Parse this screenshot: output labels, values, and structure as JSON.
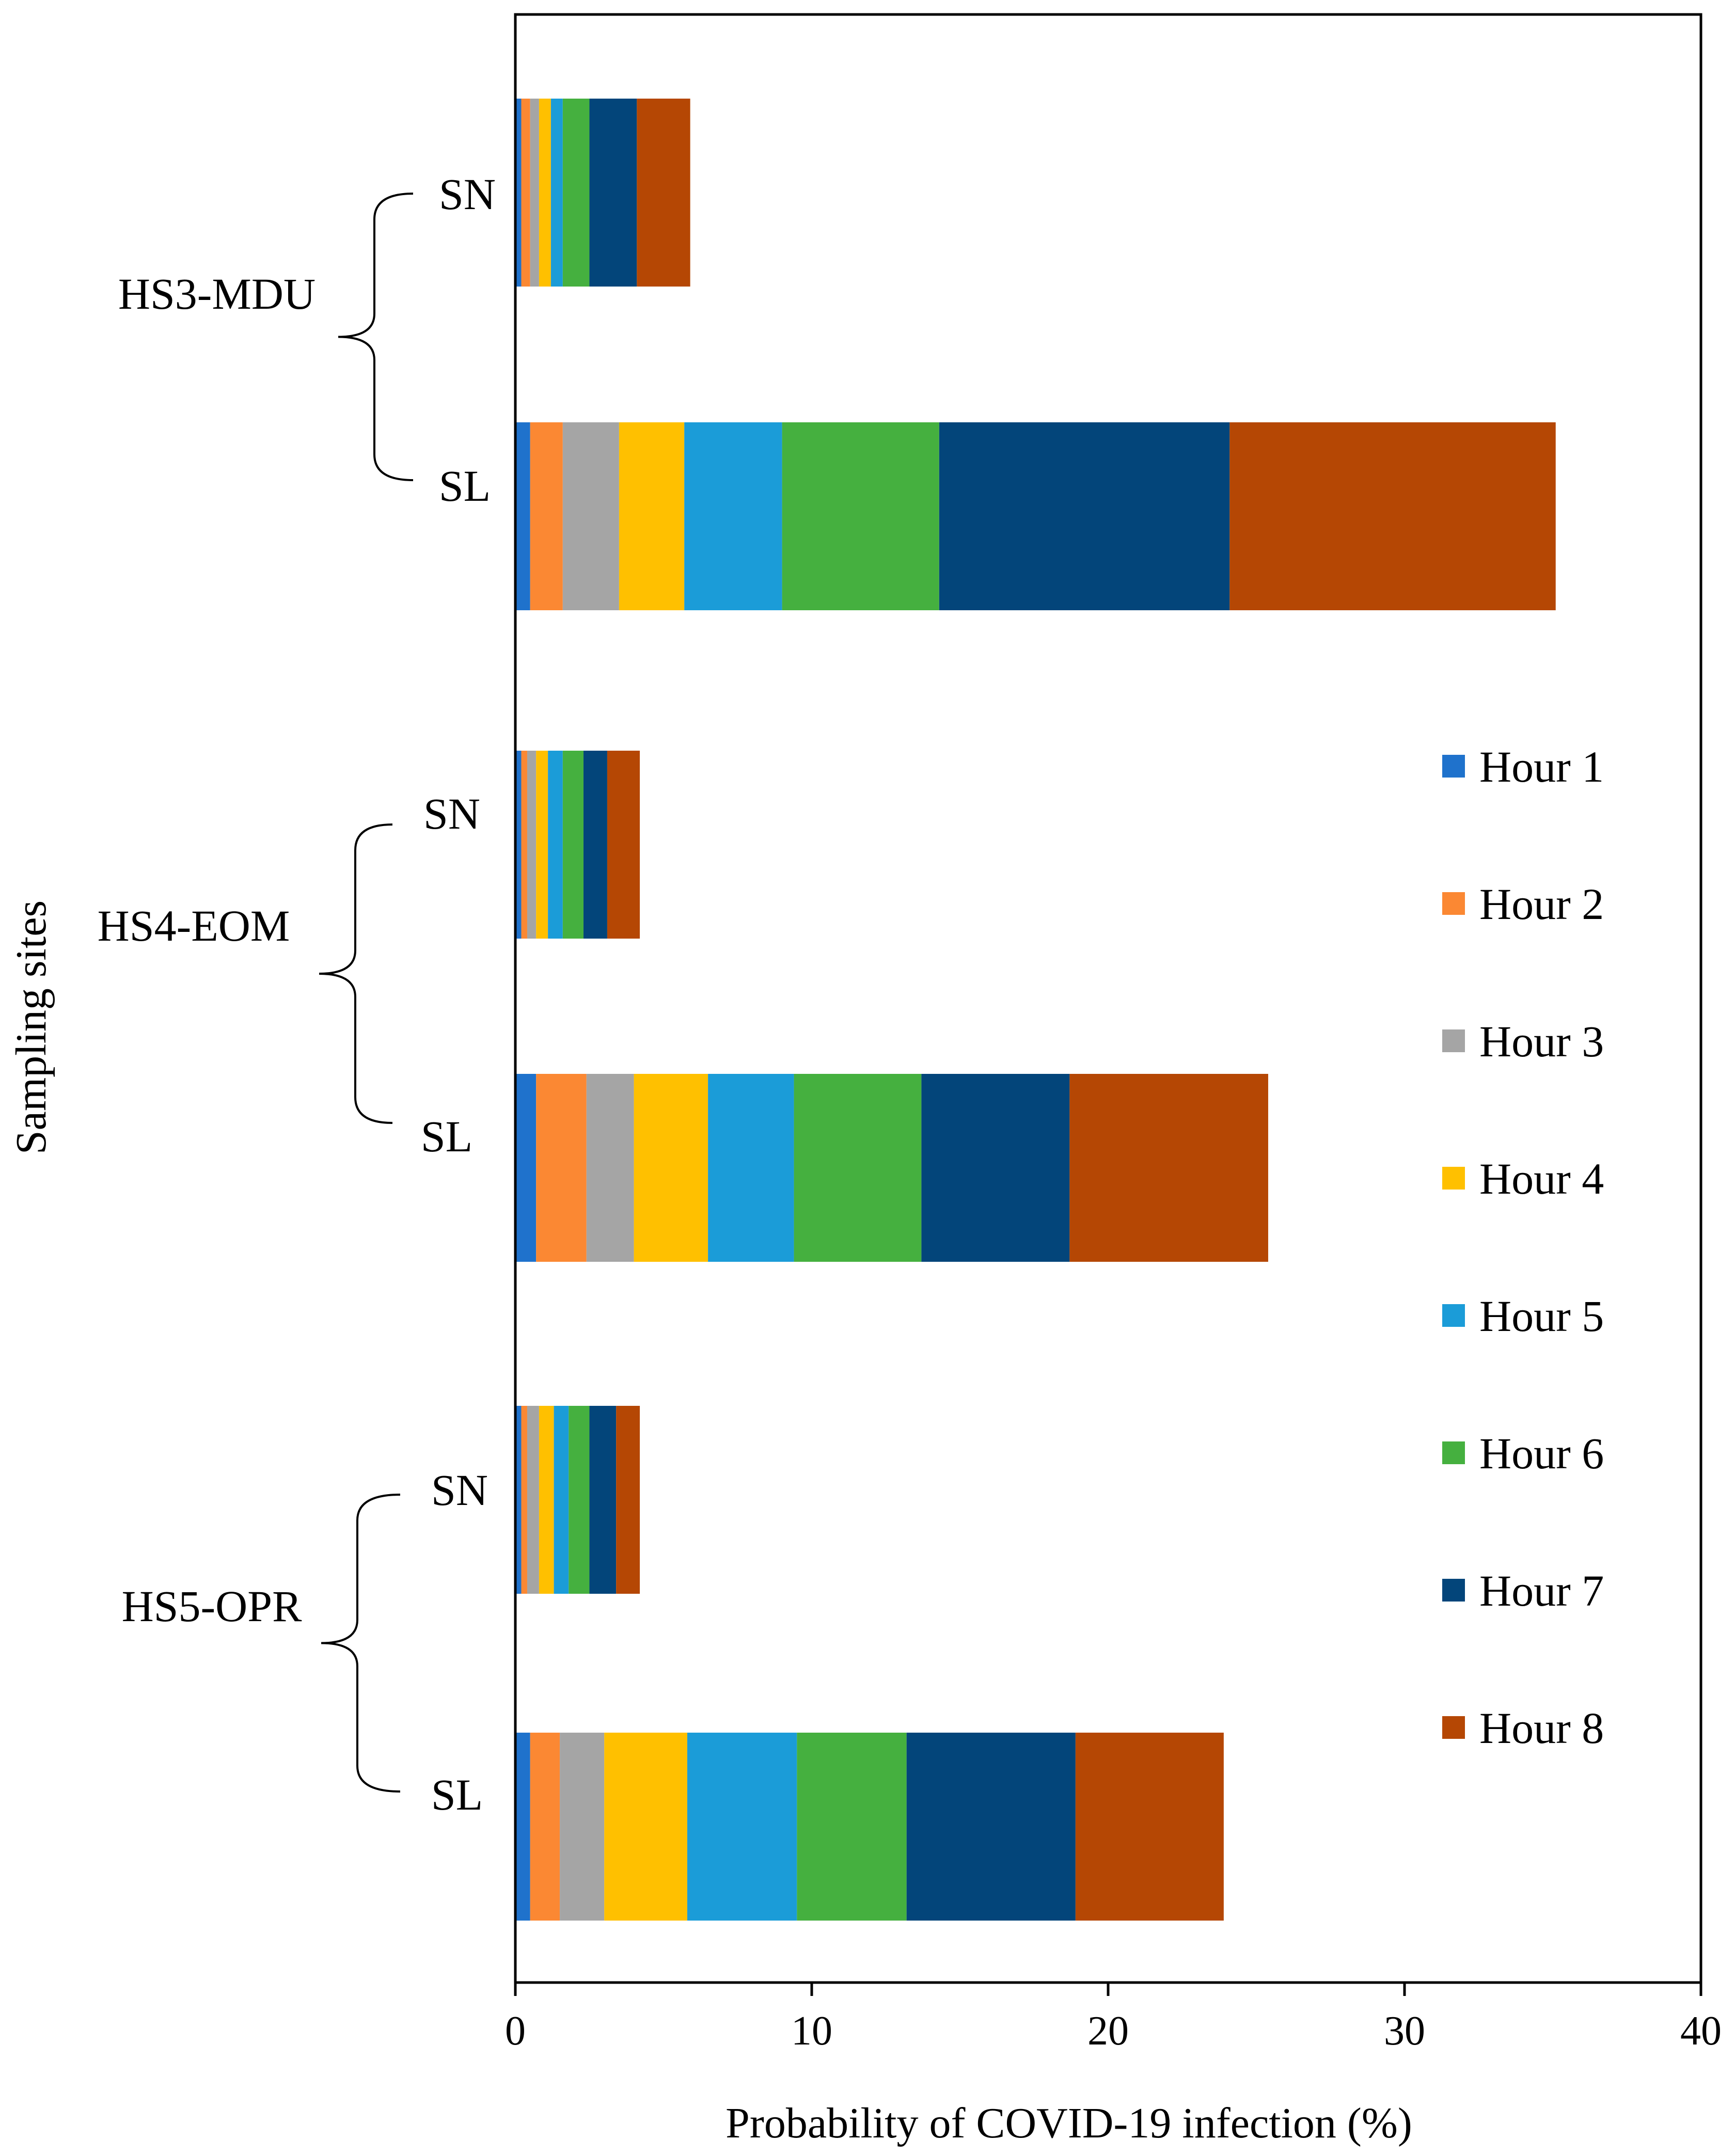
{
  "chart_data": {
    "type": "bar",
    "orientation": "horizontal",
    "stacked": true,
    "xlabel": "Probability of COVID-19 infection (%)",
    "ylabel": "Sampling sites",
    "xlim": [
      0,
      40
    ],
    "xticks": [
      "0",
      "10",
      "20",
      "30",
      "40"
    ],
    "grid": false,
    "legend_position": "right",
    "groups": [
      {
        "name": "HS3-MDU",
        "bars": [
          {
            "label": "SN",
            "values": [
              0.2,
              0.3,
              0.3,
              0.4,
              0.4,
              0.9,
              1.6,
              1.8
            ]
          },
          {
            "label": "SL",
            "values": [
              0.5,
              1.1,
              1.9,
              2.2,
              3.3,
              5.3,
              9.8,
              11.0
            ]
          }
        ]
      },
      {
        "name": "HS4-EOM",
        "bars": [
          {
            "label": "SN",
            "values": [
              0.2,
              0.2,
              0.3,
              0.4,
              0.5,
              0.7,
              0.8,
              1.1
            ]
          },
          {
            "label": "SL",
            "values": [
              0.7,
              1.7,
              1.6,
              2.5,
              2.9,
              4.3,
              5.0,
              6.7
            ]
          }
        ]
      },
      {
        "name": "HS5-OPR",
        "bars": [
          {
            "label": "SN",
            "values": [
              0.2,
              0.2,
              0.4,
              0.5,
              0.5,
              0.7,
              0.9,
              0.8
            ]
          },
          {
            "label": "SL",
            "values": [
              0.5,
              1.0,
              1.5,
              2.8,
              3.7,
              3.7,
              5.7,
              5.0
            ]
          }
        ]
      }
    ],
    "series": [
      {
        "name": "Hour 1",
        "color": "#1f72cc"
      },
      {
        "name": "Hour 2",
        "color": "#fb8833"
      },
      {
        "name": "Hour 3",
        "color": "#a5a5a5"
      },
      {
        "name": "Hour 4",
        "color": "#ffc000"
      },
      {
        "name": "Hour 5",
        "color": "#1b9cd8"
      },
      {
        "name": "Hour 6",
        "color": "#45b03f"
      },
      {
        "name": "Hour 7",
        "color": "#03457a"
      },
      {
        "name": "Hour 8",
        "color": "#b54704"
      }
    ]
  }
}
